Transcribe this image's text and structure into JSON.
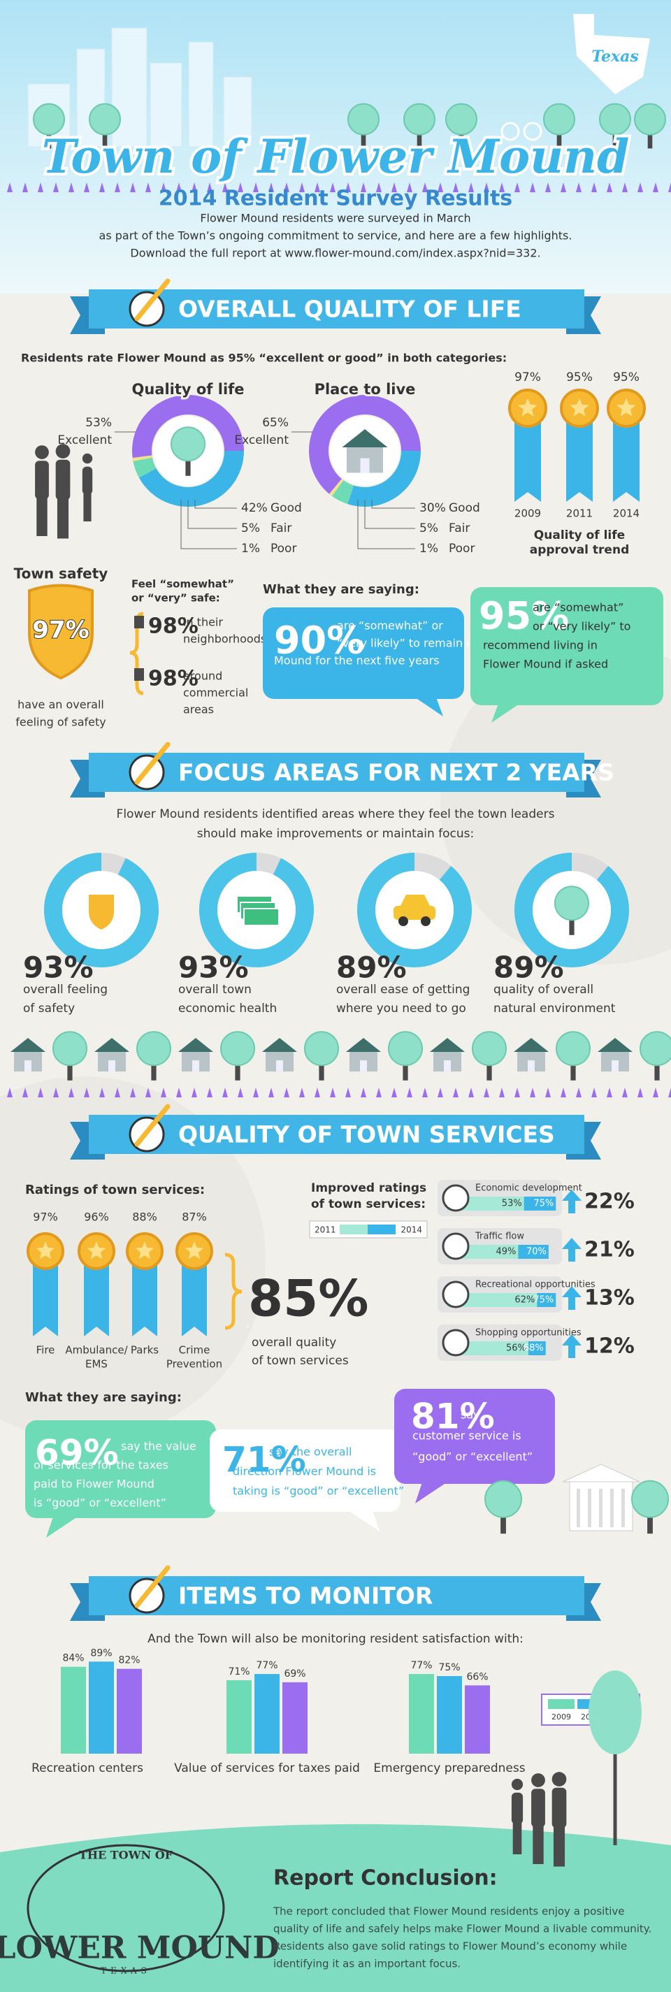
{
  "header": {
    "state": "Texas",
    "title": "Town of Flower Mound",
    "subtitle": "2014 Resident Survey Results",
    "intro": [
      "Flower Mound residents were surveyed in March",
      "as part of the Town’s ongoing commitment to service, and here are a few highlights.",
      "Download the full report at www.flower-mound.com/index.aspx?nid=332."
    ]
  },
  "quality_of_life": {
    "heading": "OVERALL QUALITY OF LIFE",
    "intro": "Residents rate Flower Mound as 95% “excellent or good” in both categories:",
    "donuts": [
      {
        "title": "Quality of life",
        "labels": [
          "Excellent",
          "Good",
          "Fair",
          "Poor"
        ],
        "values": [
          53,
          42,
          5,
          1
        ],
        "value_labels": [
          "53%",
          "42%",
          "5%",
          "1%"
        ],
        "colors": [
          "#9b6ef0",
          "#3bb5e8",
          "#6ddbb5",
          "#f2e28a"
        ]
      },
      {
        "title": "Place to live",
        "labels": [
          "Excellent",
          "Good",
          "Fair",
          "Poor"
        ],
        "values": [
          65,
          30,
          5,
          1
        ],
        "value_labels": [
          "65%",
          "30%",
          "5%",
          "1%"
        ],
        "colors": [
          "#9b6ef0",
          "#3bb5e8",
          "#6ddbb5",
          "#f2e28a"
        ]
      }
    ],
    "trend": {
      "title": [
        "Quality of life",
        "approval trend"
      ],
      "categories": [
        "2009",
        "2011",
        "2014"
      ],
      "values": [
        97,
        95,
        95
      ],
      "value_labels": [
        "97%",
        "95%",
        "95%"
      ]
    },
    "safety": {
      "title": "Town safety",
      "value": 97,
      "value_label": "97%",
      "caption": [
        "have an overall",
        "feeling of safety"
      ],
      "feel_title": [
        "Feel “somewhat”",
        "or “very” safe:"
      ],
      "items": [
        {
          "value": 98,
          "value_label": "98%",
          "text": [
            "in their",
            "neighborhoods"
          ]
        },
        {
          "value": 98,
          "value_label": "98%",
          "text": [
            "around",
            "commercial",
            "areas"
          ]
        }
      ]
    },
    "saying": {
      "title": "What they are saying:",
      "quotes": [
        {
          "value": 90,
          "value_label": "90%",
          "text": [
            "are “somewhat” or",
            "“very likely” to remain in Flower",
            "Mound for the next five years"
          ]
        },
        {
          "value": 95,
          "value_label": "95%",
          "text": [
            "are “somewhat”",
            "or “very likely” to",
            "recommend living in",
            "Flower Mound if asked"
          ]
        }
      ]
    }
  },
  "focus": {
    "heading": "FOCUS AREAS FOR NEXT 2 YEARS",
    "intro": [
      "Flower Mound residents identified areas where they feel the town leaders",
      "should make improvements or maintain focus:"
    ],
    "color": "#4cc3e8",
    "items": [
      {
        "value": 93,
        "value_label": "93%",
        "text": [
          "overall feeling",
          "of safety"
        ]
      },
      {
        "value": 93,
        "value_label": "93%",
        "text": [
          "overall town",
          "economic health"
        ]
      },
      {
        "value": 89,
        "value_label": "89%",
        "text": [
          "overall ease of getting",
          "where you need to go"
        ]
      },
      {
        "value": 89,
        "value_label": "89%",
        "text": [
          "quality of overall",
          "natural environment"
        ]
      }
    ]
  },
  "services": {
    "heading": "QUALITY OF TOWN SERVICES",
    "ratings_title": "Ratings of town services:",
    "ratings": {
      "labels": [
        [
          "Fire"
        ],
        [
          "Ambulance/",
          "EMS"
        ],
        [
          "Parks"
        ],
        [
          "Crime",
          "Prevention"
        ]
      ],
      "values": [
        97,
        96,
        88,
        87
      ],
      "value_labels": [
        "97%",
        "96%",
        "88%",
        "87%"
      ]
    },
    "overall": {
      "value": 85,
      "value_label": "85%",
      "text": [
        "overall quality",
        "of town services"
      ]
    },
    "improved": {
      "title": [
        "Improved ratings",
        "of town services:"
      ],
      "legend": [
        "2011",
        "2014"
      ],
      "colors": [
        "#a6e9d6",
        "#3bb5e8"
      ],
      "rows": [
        {
          "name": "Economic development",
          "values": [
            53,
            75
          ],
          "value_labels": [
            "53%",
            "75%"
          ],
          "change": 22,
          "change_label": "22%"
        },
        {
          "name": "Traffic flow",
          "values": [
            49,
            70
          ],
          "value_labels": [
            "49%",
            "70%"
          ],
          "change": 21,
          "change_label": "21%"
        },
        {
          "name": "Recreational opportunities",
          "values": [
            62,
            75
          ],
          "value_labels": [
            "62%",
            "75%"
          ],
          "change": 13,
          "change_label": "13%"
        },
        {
          "name": "Shopping opportunities",
          "values": [
            56,
            68
          ],
          "value_labels": [
            "56%",
            "68%"
          ],
          "change": 12,
          "change_label": "12%"
        }
      ]
    },
    "saying": {
      "title": "What they are saying:",
      "quotes": [
        {
          "value": 69,
          "value_label": "69%",
          "text": [
            "say the value",
            "of services for the taxes",
            "paid to Flower Mound",
            "is “good” or “excellent”"
          ]
        },
        {
          "value": 71,
          "value_label": "71%",
          "text": [
            "say the overall",
            "direction Flower Mound is",
            "taking is “good” or “excellent”"
          ]
        },
        {
          "value": 81,
          "value_label": "81%",
          "text": [
            "say",
            "customer service is",
            "“good” or “excellent”"
          ]
        }
      ]
    }
  },
  "monitor": {
    "heading": "ITEMS TO MONITOR",
    "intro": "And the Town will also be monitoring resident satisfaction with:",
    "legend": [
      "2009",
      "2011",
      "2014"
    ],
    "colors": [
      "#6ddbb5",
      "#3bb5e8",
      "#9b6ef0"
    ],
    "groups": [
      {
        "name": "Recreation centers",
        "values": [
          84,
          89,
          82
        ],
        "value_labels": [
          "84%",
          "89%",
          "82%"
        ]
      },
      {
        "name": "Value of services for taxes paid",
        "values": [
          71,
          77,
          69
        ],
        "value_labels": [
          "71%",
          "77%",
          "69%"
        ]
      },
      {
        "name": "Emergency preparedness",
        "values": [
          77,
          75,
          66
        ],
        "value_labels": [
          "77%",
          "75%",
          "66%"
        ]
      }
    ]
  },
  "conclusion": {
    "logo": [
      "THE TOWN OF",
      "FLOWER MOUND",
      "TEXAS"
    ],
    "title": "Report Conclusion:",
    "text": [
      "The report concluded that Flower Mound residents enjoy a positive",
      "quality of life and safely helps make Flower Mound a livable community.",
      "Residents also gave solid ratings to Flower Mound’s economy while",
      "identifying it as an important focus."
    ]
  }
}
